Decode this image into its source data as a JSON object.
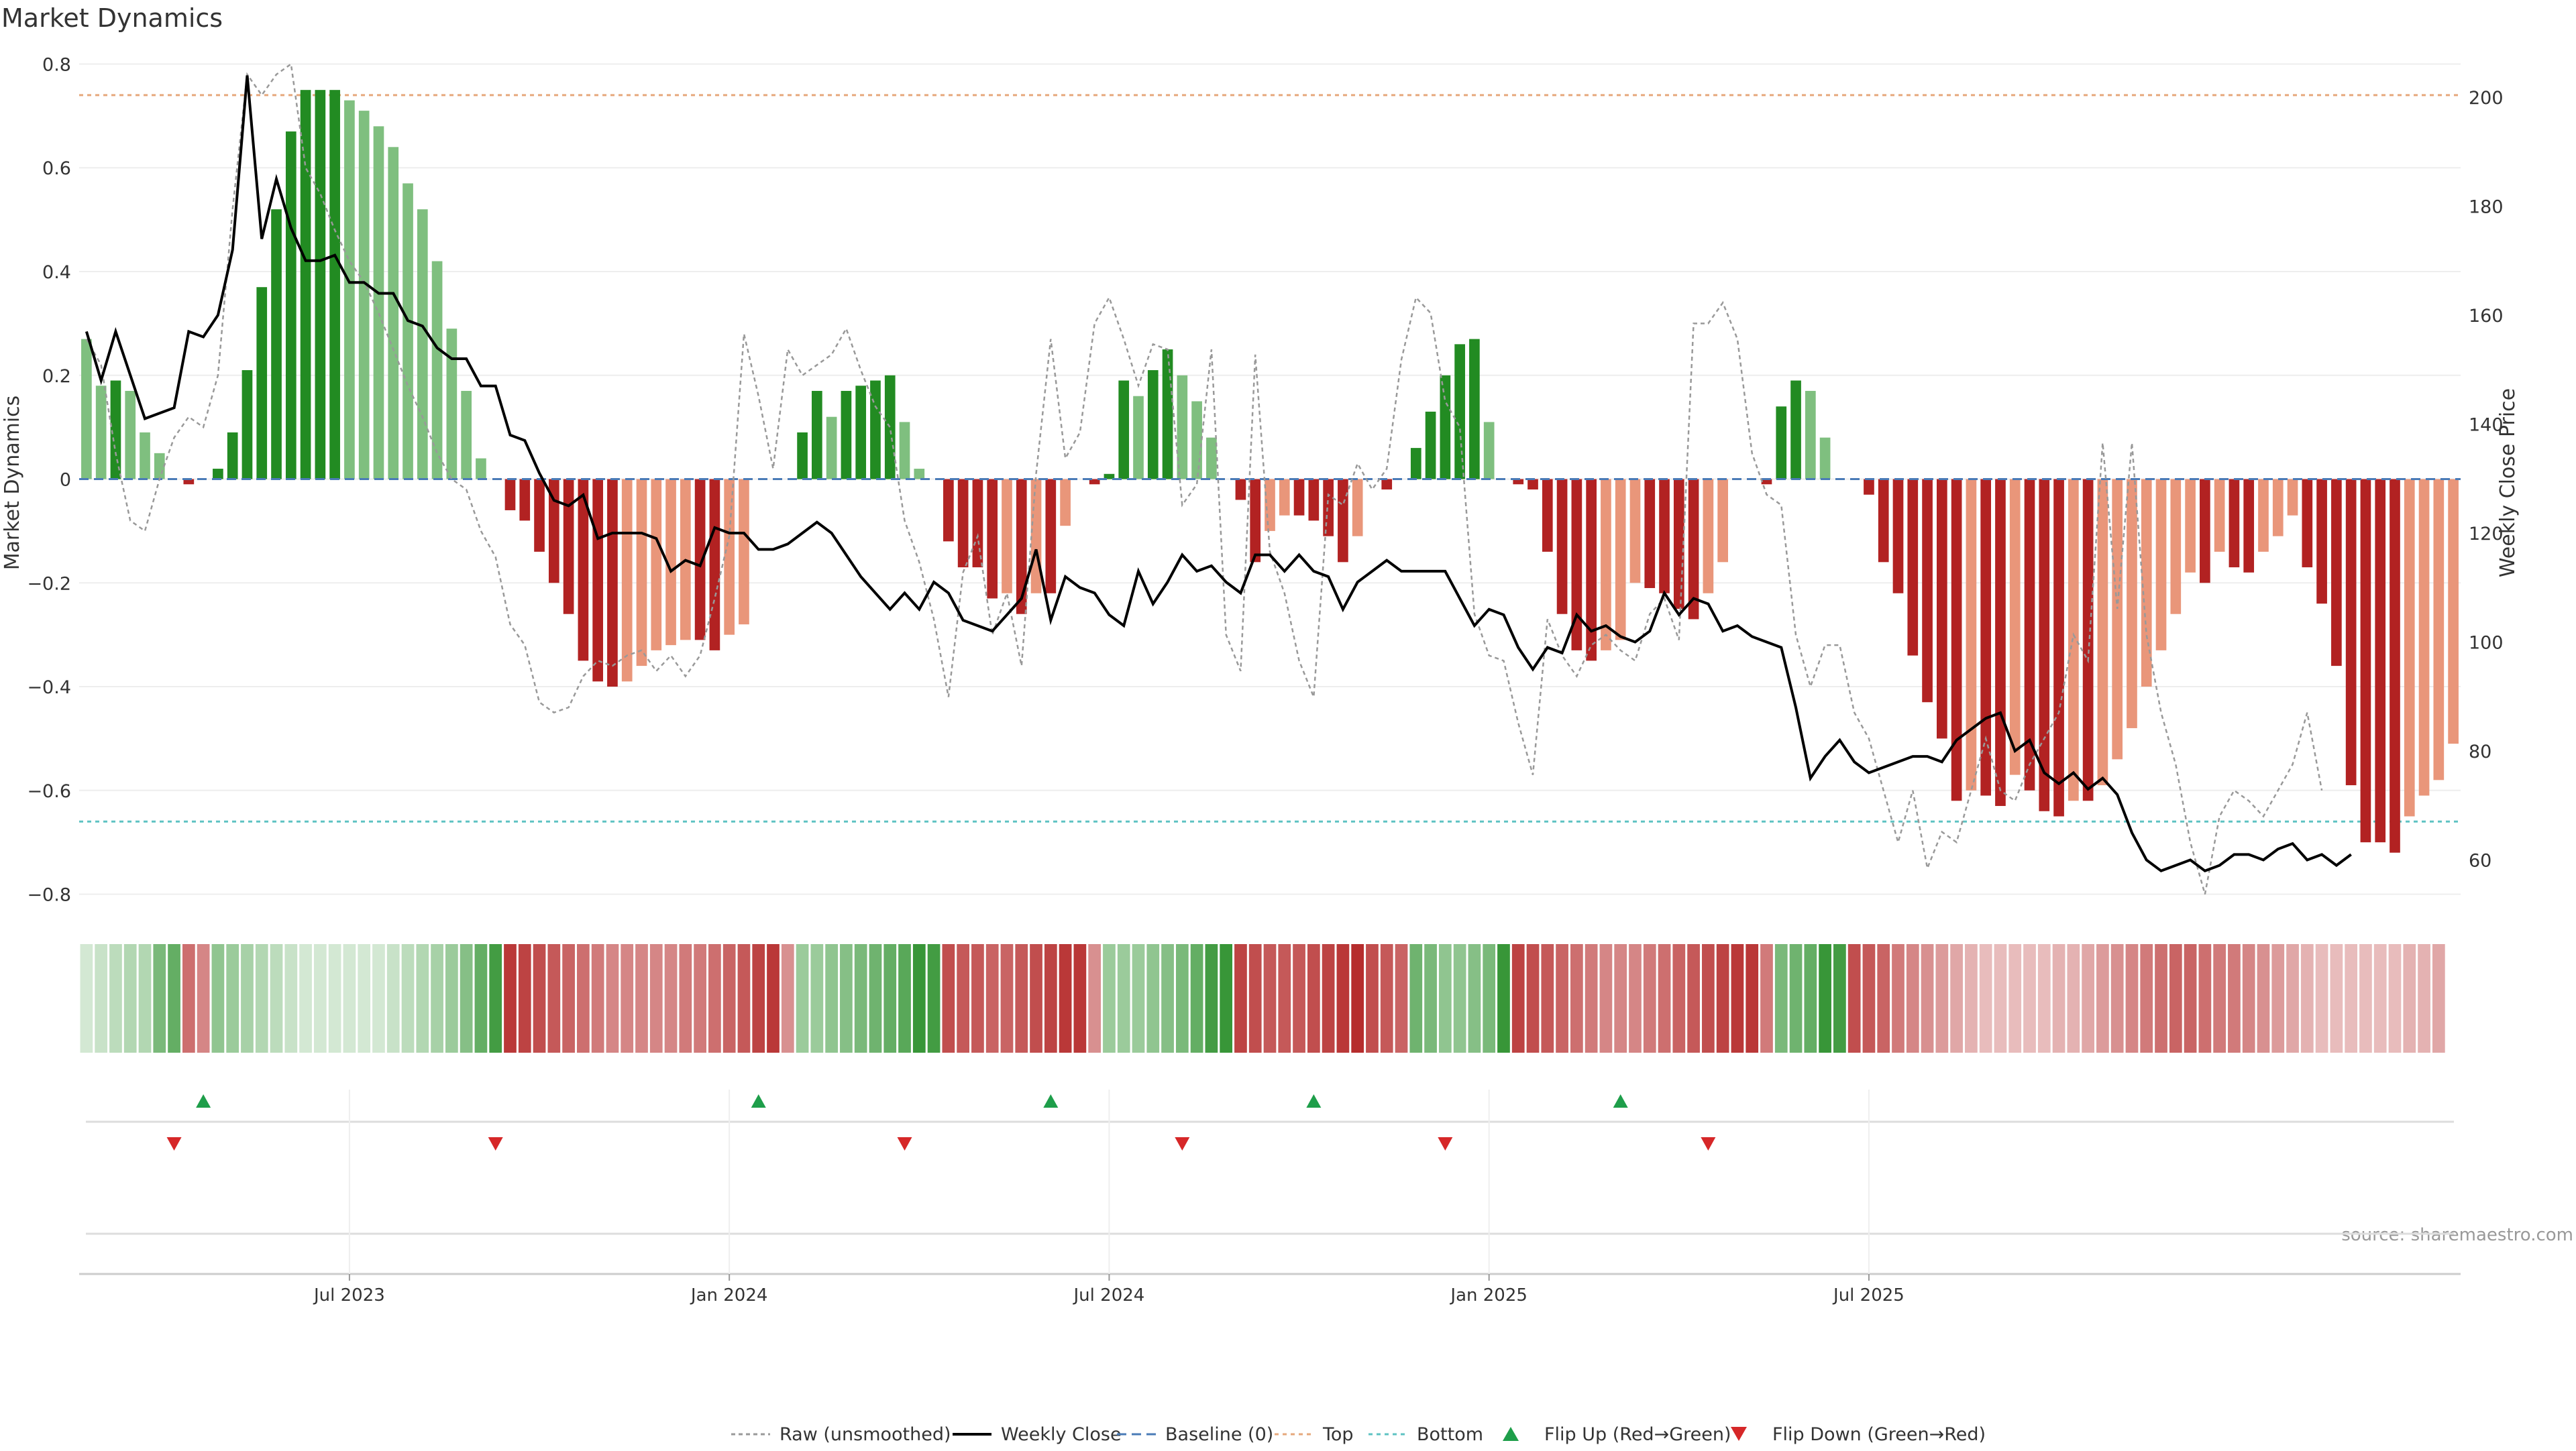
{
  "chart_data": {
    "type": "bar",
    "title": "Market Dynamics",
    "ylabel": "Market Dynamics",
    "y2label": "Weekly Close Price",
    "ylim": [
      -0.86,
      0.82
    ],
    "y2lim": [
      48,
      208
    ],
    "yticks": [
      "0.8",
      "0.6",
      "0.4",
      "0.2",
      "0",
      "−0.2",
      "−0.4",
      "−0.6",
      "−0.8"
    ],
    "y2ticks": [
      "200",
      "180",
      "160",
      "140",
      "120",
      "100",
      "80",
      "60"
    ],
    "xticks": [
      "Jul 2023",
      "Jan 2024",
      "Jul 2024",
      "Jan 2025",
      "Jul 2025"
    ],
    "top_line": 0.74,
    "bottom_line": -0.66,
    "bars": [
      0.27,
      0.18,
      0.19,
      0.17,
      0.09,
      0.05,
      0,
      -0.01,
      0,
      0.02,
      0.09,
      0.21,
      0.37,
      0.52,
      0.67,
      0.75,
      0.75,
      0.75,
      0.73,
      0.71,
      0.68,
      0.64,
      0.57,
      0.52,
      0.42,
      0.29,
      0.17,
      0.04,
      0,
      -0.06,
      -0.08,
      -0.14,
      -0.2,
      -0.26,
      -0.35,
      -0.39,
      -0.4,
      -0.39,
      -0.36,
      -0.33,
      -0.32,
      -0.31,
      -0.31,
      -0.33,
      -0.3,
      -0.28,
      0,
      0,
      0,
      0.09,
      0.17,
      0.12,
      0.17,
      0.18,
      0.19,
      0.2,
      0.11,
      0.02,
      0,
      -0.12,
      -0.17,
      -0.17,
      -0.23,
      -0.22,
      -0.26,
      -0.22,
      -0.22,
      -0.09,
      0,
      -0.01,
      0.01,
      0.19,
      0.16,
      0.21,
      0.25,
      0.2,
      0.15,
      0.08,
      0,
      -0.04,
      -0.16,
      -0.1,
      -0.07,
      -0.07,
      -0.08,
      -0.11,
      -0.16,
      -0.11,
      0,
      -0.02,
      0,
      0.06,
      0.13,
      0.2,
      0.26,
      0.27,
      0.11,
      0,
      -0.01,
      -0.02,
      -0.14,
      -0.26,
      -0.33,
      -0.35,
      -0.33,
      -0.31,
      -0.2,
      -0.21,
      -0.22,
      -0.25,
      -0.27,
      -0.22,
      -0.16,
      0,
      0,
      -0.01,
      0.14,
      0.19,
      0.17,
      0.08,
      0,
      0,
      -0.03,
      -0.16,
      -0.22,
      -0.34,
      -0.43,
      -0.5,
      -0.62,
      -0.6,
      -0.61,
      -0.63,
      -0.57,
      -0.6,
      -0.64,
      -0.65,
      -0.62,
      -0.62,
      -0.59,
      -0.54,
      -0.48,
      -0.4,
      -0.33,
      -0.26,
      -0.18,
      -0.2,
      -0.14,
      -0.17,
      -0.18,
      -0.14,
      -0.11,
      -0.07,
      -0.17,
      -0.24,
      -0.36,
      -0.59,
      -0.7,
      -0.7,
      -0.72,
      -0.65,
      -0.61,
      -0.58,
      -0.51
    ],
    "close": [
      157,
      148,
      157,
      149,
      141,
      142,
      143,
      157,
      156,
      160,
      172,
      204,
      174,
      185,
      176,
      170,
      170,
      171,
      166,
      166,
      164,
      164,
      159,
      158,
      154,
      152,
      152,
      147,
      147,
      138,
      137,
      131,
      126,
      125,
      127,
      119,
      120,
      120,
      120,
      119,
      113,
      115,
      114,
      121,
      120,
      120,
      117,
      117,
      118,
      120,
      122,
      120,
      116,
      112,
      109,
      106,
      109,
      106,
      111,
      109,
      104,
      103,
      102,
      105,
      108,
      117,
      104,
      112,
      110,
      109,
      105,
      103,
      113,
      107,
      111,
      116,
      113,
      114,
      111,
      109,
      116,
      116,
      113,
      116,
      113,
      112,
      106,
      111,
      113,
      115,
      113,
      113,
      113,
      113,
      108,
      103,
      106,
      105,
      99,
      95,
      99,
      98,
      105,
      102,
      103,
      101,
      100,
      102,
      109,
      105,
      108,
      107,
      102,
      103,
      101,
      100,
      99,
      88,
      75,
      79,
      82,
      78,
      76,
      77,
      78,
      79,
      79,
      78,
      82,
      84,
      86,
      87,
      80,
      82,
      76,
      74,
      76,
      73,
      75,
      72,
      65,
      60,
      58,
      59,
      60,
      58,
      59,
      61,
      61,
      60,
      62,
      63,
      60,
      61,
      59,
      61
    ],
    "raw": [
      0.27,
      0.22,
      0.05,
      -0.08,
      -0.1,
      0,
      0.08,
      0.12,
      0.1,
      0.2,
      0.52,
      0.78,
      0.74,
      0.78,
      0.8,
      0.6,
      0.55,
      0.48,
      0.42,
      0.38,
      0.32,
      0.25,
      0.18,
      0.12,
      0.05,
      0,
      -0.02,
      -0.1,
      -0.15,
      -0.28,
      -0.32,
      -0.43,
      -0.45,
      -0.44,
      -0.38,
      -0.35,
      -0.36,
      -0.34,
      -0.33,
      -0.37,
      -0.34,
      -0.38,
      -0.34,
      -0.23,
      -0.11,
      0.28,
      0.16,
      0.02,
      0.25,
      0.2,
      0.22,
      0.24,
      0.29,
      0.21,
      0.14,
      0.1,
      -0.08,
      -0.16,
      -0.27,
      -0.42,
      -0.18,
      -0.11,
      -0.3,
      -0.22,
      -0.36,
      0.01,
      0.27,
      0.04,
      0.09,
      0.3,
      0.35,
      0.27,
      0.18,
      0.26,
      0.25,
      -0.05,
      -0.01,
      0.25,
      -0.3,
      -0.37,
      0.24,
      -0.14,
      -0.22,
      -0.35,
      -0.42,
      -0.03,
      -0.05,
      0.03,
      -0.02,
      0.02,
      0.23,
      0.35,
      0.32,
      0.15,
      0.1,
      -0.26,
      -0.34,
      -0.35,
      -0.47,
      -0.57,
      -0.27,
      -0.34,
      -0.38,
      -0.32,
      -0.3,
      -0.33,
      -0.35,
      -0.26,
      -0.23,
      -0.31,
      0.3,
      0.3,
      0.34,
      0.27,
      0.05,
      -0.03,
      -0.05,
      -0.3,
      -0.4,
      -0.32,
      -0.32,
      -0.45,
      -0.5,
      -0.6,
      -0.7,
      -0.6,
      -0.75,
      -0.68,
      -0.7,
      -0.6,
      -0.5,
      -0.6,
      -0.62,
      -0.55,
      -0.5,
      -0.45,
      -0.3,
      -0.35,
      0.07,
      -0.25,
      0.07,
      -0.3,
      -0.45,
      -0.55,
      -0.7,
      -0.8,
      -0.65,
      -0.6,
      -0.62,
      -0.65,
      -0.6,
      -0.55,
      -0.45,
      -0.6
    ],
    "strip": [
      0.2,
      0.25,
      0.3,
      0.35,
      0.35,
      0.6,
      0.7,
      0.65,
      0.55,
      0.5,
      0.45,
      0.4,
      0.35,
      0.3,
      0.25,
      0.2,
      0.2,
      0.2,
      0.2,
      0.2,
      0.2,
      0.25,
      0.3,
      0.35,
      0.4,
      0.45,
      0.55,
      0.7,
      0.85,
      0.9,
      0.85,
      0.8,
      0.75,
      0.7,
      0.65,
      0.6,
      0.55,
      0.55,
      0.55,
      0.55,
      0.55,
      0.6,
      0.6,
      0.65,
      0.7,
      0.75,
      0.85,
      0.9,
      0.5,
      0.45,
      0.45,
      0.5,
      0.55,
      0.6,
      0.65,
      0.7,
      0.75,
      0.9,
      0.85,
      0.8,
      0.75,
      0.75,
      0.7,
      0.7,
      0.75,
      0.8,
      0.85,
      0.9,
      0.9,
      0.5,
      0.45,
      0.45,
      0.45,
      0.5,
      0.55,
      0.6,
      0.7,
      0.85,
      0.9,
      0.85,
      0.8,
      0.75,
      0.75,
      0.75,
      0.8,
      0.85,
      0.9,
      0.95,
      0.8,
      0.75,
      0.7,
      0.65,
      0.6,
      0.5,
      0.5,
      0.55,
      0.6,
      0.9,
      0.85,
      0.8,
      0.75,
      0.7,
      0.65,
      0.6,
      0.55,
      0.55,
      0.55,
      0.6,
      0.65,
      0.7,
      0.75,
      0.8,
      0.85,
      0.9,
      0.9,
      0.6,
      0.6,
      0.65,
      0.7,
      0.9,
      0.85,
      0.8,
      0.75,
      0.7,
      0.6,
      0.55,
      0.5,
      0.45,
      0.4,
      0.35,
      0.3,
      0.3,
      0.3,
      0.3,
      0.3,
      0.35,
      0.35,
      0.4,
      0.45,
      0.5,
      0.55,
      0.6,
      0.65,
      0.7,
      0.7,
      0.65,
      0.6,
      0.6,
      0.55,
      0.5,
      0.45,
      0.4,
      0.35,
      0.3,
      0.3,
      0.3,
      0.3,
      0.3,
      0.3,
      0.35,
      0.35,
      0.4
    ],
    "flip_up_weeks": [
      8,
      46,
      66,
      84,
      105
    ],
    "flip_down_weeks": [
      6,
      28,
      56,
      75,
      93,
      111
    ],
    "legend": [
      {
        "label": "Raw (unsmoothed)",
        "style": "raw",
        "color": "#999999"
      },
      {
        "label": "Weekly Close",
        "style": "close",
        "color": "#000000"
      },
      {
        "label": "Baseline (0)",
        "style": "baseline",
        "color": "#4a7bb7"
      },
      {
        "label": "Top",
        "style": "top",
        "color": "#e6a87c"
      },
      {
        "label": "Bottom",
        "style": "bottom",
        "color": "#5ec3c3"
      },
      {
        "label": "Flip Up (Red→Green)",
        "style": "up",
        "color": "#1e9e4a"
      },
      {
        "label": "Flip Down (Green→Red)",
        "style": "down",
        "color": "#d62728"
      }
    ],
    "legend_placement": "bottom-center",
    "colors": {
      "bar_pos_strong": "#228b22",
      "bar_pos_weak": "#7fbf7f",
      "bar_neg_strong": "#b22222",
      "bar_neg_weak": "#e9967a"
    },
    "source": "source: sharemaestro.com"
  }
}
